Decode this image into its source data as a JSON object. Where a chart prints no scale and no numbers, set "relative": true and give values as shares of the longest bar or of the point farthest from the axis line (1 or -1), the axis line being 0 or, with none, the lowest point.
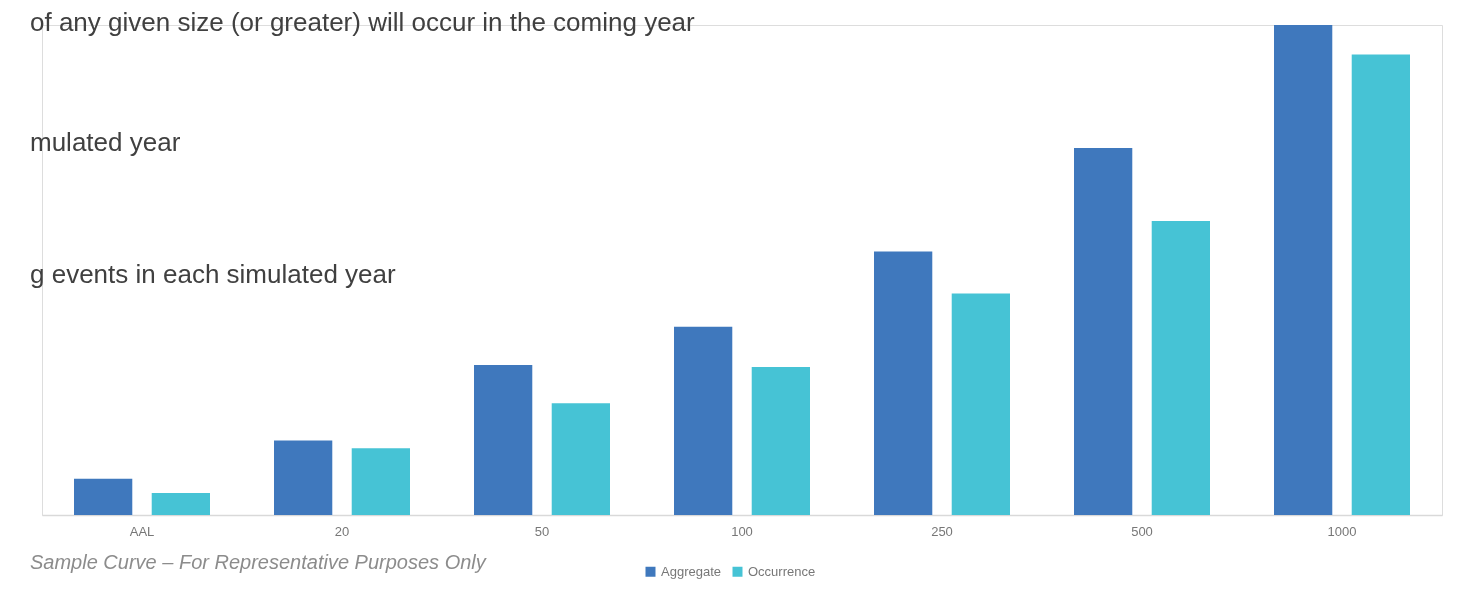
{
  "chart_data": {
    "type": "bar",
    "relative": true,
    "categories": [
      "AAL",
      "20",
      "50",
      "100",
      "250",
      "500",
      "1000"
    ],
    "series": [
      {
        "name": "Aggregate",
        "color": "#3f78bd",
        "values": [
          0.074,
          0.152,
          0.306,
          0.384,
          0.538,
          0.749,
          1
        ]
      },
      {
        "name": "Occurrence",
        "color": "#46c3d5",
        "values": [
          0.045,
          0.136,
          0.228,
          0.302,
          0.452,
          0.6,
          0.94
        ]
      }
    ],
    "annotations": [
      "of any given size (or greater) will occur in the coming year",
      "mulated year",
      "g events in each simulated year",
      "Sample Curve – For Representative Purposes Only"
    ],
    "legend": "bottom",
    "grid": false
  }
}
